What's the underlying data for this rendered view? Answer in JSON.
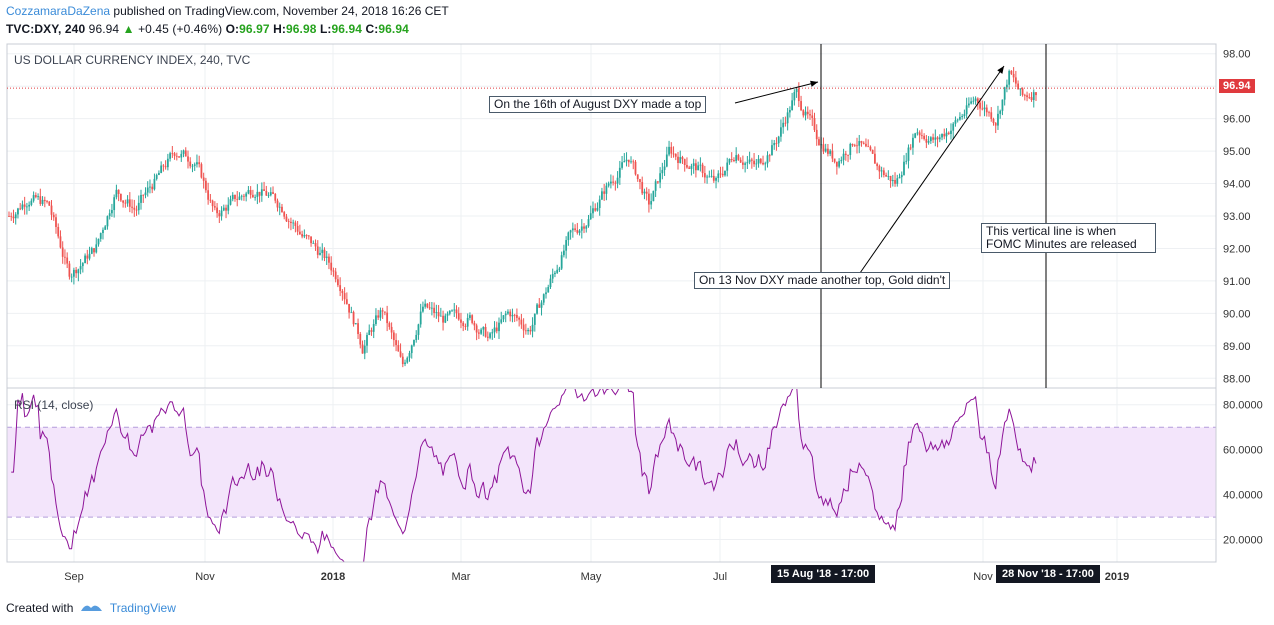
{
  "header": {
    "author": "CozzamaraDaZena",
    "published": "published on TradingView.com, November 24, 2018 16:26 CET",
    "symbol": "TVC:DXY, 240",
    "last": "96.94",
    "change": "+0.45 (+0.46%)",
    "o_label": "O:",
    "o_val": "96.97",
    "h_label": "H:",
    "h_val": "96.98",
    "l_label": "L:",
    "l_val": "96.94",
    "c_label": "C:",
    "c_val": "96.94"
  },
  "footer": {
    "created": "Created with",
    "brand": "TradingView"
  },
  "colors": {
    "up": "#26a69a",
    "down": "#ef5350",
    "rsi": "#8e1599",
    "rsi_band": "#f3e5fb",
    "accent": "#3a8bd8",
    "price_tag": "#e03a3e"
  },
  "annotations": {
    "a1": "On the 16th of August DXY made a top",
    "a2": "On 13 Nov DXY made another top, Gold didn't",
    "a3": "This vertical line is when FOMC Minutes are released"
  },
  "date_tags": {
    "left": "15 Aug '18 - 17:00",
    "right": "28 Nov '18 - 17:00"
  },
  "chart_data": [
    {
      "type": "candlestick",
      "title": "US DOLLAR CURRENCY INDEX, 240, TVC",
      "last_price_label": "96.94",
      "ylim": [
        87.7,
        98.3
      ],
      "y_ticks": [
        "98.00",
        "97.00",
        "96.00",
        "95.00",
        "94.00",
        "93.00",
        "92.00",
        "91.00",
        "90.00",
        "89.00",
        "88.00"
      ],
      "x_ticks": [
        "Sep",
        "Nov",
        "2018",
        "Mar",
        "May",
        "Jul",
        "Nov",
        "2019"
      ],
      "anchors": [
        {
          "t": 0,
          "v": 93.0
        },
        {
          "t": 3,
          "v": 93.6
        },
        {
          "t": 6,
          "v": 93.3
        },
        {
          "t": 9,
          "v": 91.2
        },
        {
          "t": 13,
          "v": 92.0
        },
        {
          "t": 16,
          "v": 93.8
        },
        {
          "t": 19,
          "v": 93.2
        },
        {
          "t": 22,
          "v": 94.1
        },
        {
          "t": 25,
          "v": 95.0
        },
        {
          "t": 28,
          "v": 94.7
        },
        {
          "t": 31,
          "v": 93.0
        },
        {
          "t": 34,
          "v": 93.5
        },
        {
          "t": 37,
          "v": 93.9
        },
        {
          "t": 41,
          "v": 93.3
        },
        {
          "t": 44,
          "v": 92.4
        },
        {
          "t": 47,
          "v": 91.8
        },
        {
          "t": 50,
          "v": 90.9
        },
        {
          "t": 53,
          "v": 89.0
        },
        {
          "t": 56,
          "v": 90.1
        },
        {
          "t": 59,
          "v": 88.3
        },
        {
          "t": 62,
          "v": 90.2
        },
        {
          "t": 65,
          "v": 89.8
        },
        {
          "t": 69,
          "v": 89.9
        },
        {
          "t": 72,
          "v": 89.2
        },
        {
          "t": 75,
          "v": 90.0
        },
        {
          "t": 78,
          "v": 89.5
        },
        {
          "t": 81,
          "v": 90.9
        },
        {
          "t": 84,
          "v": 92.3
        },
        {
          "t": 87,
          "v": 93.0
        },
        {
          "t": 90,
          "v": 94.0
        },
        {
          "t": 93,
          "v": 94.8
        },
        {
          "t": 96,
          "v": 93.3
        },
        {
          "t": 99,
          "v": 95.0
        },
        {
          "t": 103,
          "v": 94.5
        },
        {
          "t": 106,
          "v": 94.0
        },
        {
          "t": 109,
          "v": 95.0
        },
        {
          "t": 112,
          "v": 94.5
        },
        {
          "t": 115,
          "v": 95.3
        },
        {
          "t": 118,
          "v": 96.8
        },
        {
          "t": 121,
          "v": 95.5
        },
        {
          "t": 124,
          "v": 94.7
        },
        {
          "t": 127,
          "v": 95.4
        },
        {
          "t": 130,
          "v": 94.5
        },
        {
          "t": 133,
          "v": 94.0
        },
        {
          "t": 136,
          "v": 95.7
        },
        {
          "t": 139,
          "v": 95.3
        },
        {
          "t": 142,
          "v": 95.9
        },
        {
          "t": 145,
          "v": 96.6
        },
        {
          "t": 148,
          "v": 96.0
        },
        {
          "t": 150,
          "v": 97.4
        },
        {
          "t": 152,
          "v": 96.6
        },
        {
          "t": 154,
          "v": 96.9
        }
      ]
    },
    {
      "type": "line",
      "title": "RSI (14, close)",
      "ylim": [
        10,
        87
      ],
      "y_ticks": [
        "80.0000",
        "60.0000",
        "40.0000",
        "20.0000"
      ],
      "band": [
        30,
        70
      ]
    }
  ]
}
